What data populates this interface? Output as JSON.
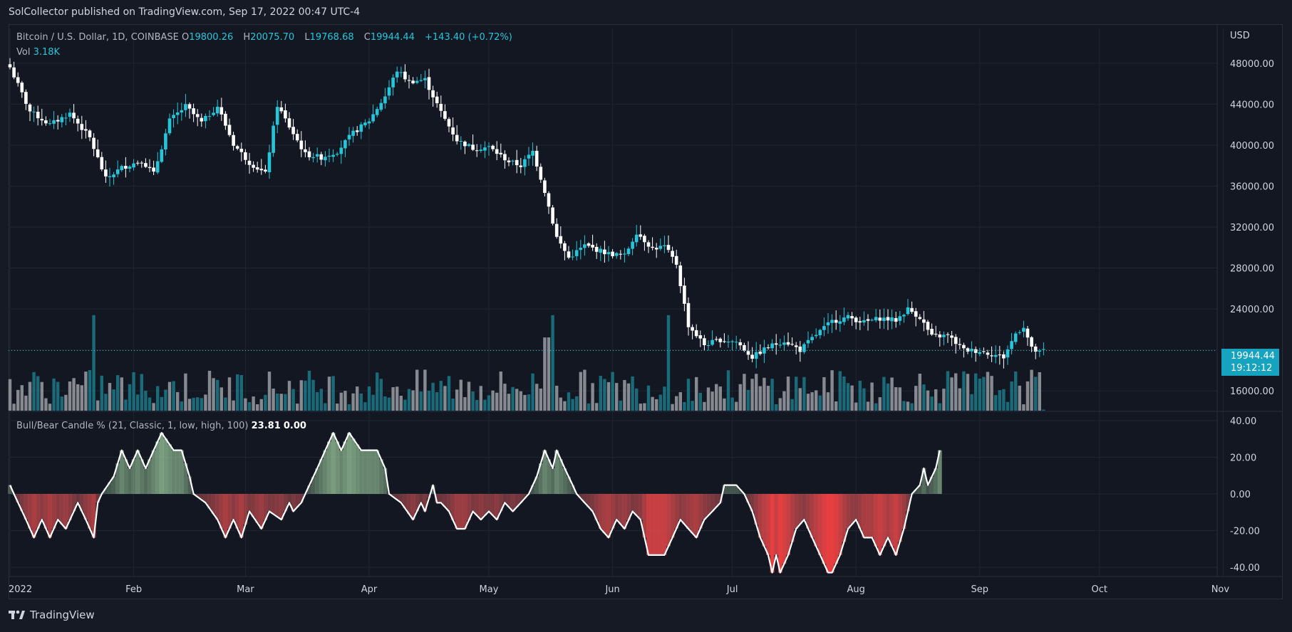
{
  "header": {
    "publisher_line": "SolCollector published on TradingView.com, Sep 17, 2022 00:47 UTC-4"
  },
  "symbol": {
    "name": "Bitcoin / U.S. Dollar, 1D, COINBASE",
    "open_label": "O",
    "open": "19800.26",
    "high_label": "H",
    "high": "20075.70",
    "low_label": "L",
    "low": "19768.68",
    "close_label": "C",
    "close": "19944.44",
    "change": "+143.40 (+0.72%)",
    "vol_label": "Vol",
    "vol": "3.18K",
    "currency": "USD",
    "last_price": "19944.44",
    "countdown": "19:12:12"
  },
  "indicator": {
    "title": "Bull/Bear Candle % (21, Classic, 1, low, high, 100)",
    "value1": "23.81",
    "value2": "0.00"
  },
  "footer": {
    "brand": "TradingView"
  },
  "colors": {
    "up": "#26c6da",
    "down": "#ffffff",
    "bg": "#131722",
    "grid": "#1f2430"
  },
  "chart_data": [
    {
      "type": "candlestick",
      "title": "Bitcoin / U.S. Dollar, 1D, COINBASE",
      "ylabel": "USD",
      "ylim": [
        14000,
        50000
      ],
      "yticks": [
        "48000.00",
        "44000.00",
        "40000.00",
        "36000.00",
        "32000.00",
        "28000.00",
        "24000.00",
        "16000.00"
      ],
      "xticks": [
        "2022",
        "Feb",
        "Mar",
        "Apr",
        "May",
        "Jun",
        "Jul",
        "Aug",
        "Sep",
        "Oct",
        "Nov"
      ],
      "x_start": "2022-01-01",
      "anchors": [
        {
          "day": 0,
          "close": 47600
        },
        {
          "day": 5,
          "close": 43300
        },
        {
          "day": 10,
          "close": 42000
        },
        {
          "day": 15,
          "close": 43100
        },
        {
          "day": 20,
          "close": 40700
        },
        {
          "day": 24,
          "close": 36700
        },
        {
          "day": 28,
          "close": 37800
        },
        {
          "day": 33,
          "close": 38500
        },
        {
          "day": 36,
          "close": 37200
        },
        {
          "day": 40,
          "close": 42400
        },
        {
          "day": 44,
          "close": 43800
        },
        {
          "day": 48,
          "close": 42200
        },
        {
          "day": 52,
          "close": 43800
        },
        {
          "day": 56,
          "close": 40100
        },
        {
          "day": 60,
          "close": 38300
        },
        {
          "day": 64,
          "close": 37200
        },
        {
          "day": 67,
          "close": 43900
        },
        {
          "day": 70,
          "close": 41800
        },
        {
          "day": 74,
          "close": 39100
        },
        {
          "day": 78,
          "close": 38800
        },
        {
          "day": 82,
          "close": 39400
        },
        {
          "day": 86,
          "close": 41200
        },
        {
          "day": 90,
          "close": 42400
        },
        {
          "day": 94,
          "close": 44800
        },
        {
          "day": 97,
          "close": 47300
        },
        {
          "day": 100,
          "close": 46200
        },
        {
          "day": 104,
          "close": 46400
        },
        {
          "day": 108,
          "close": 43200
        },
        {
          "day": 112,
          "close": 40500
        },
        {
          "day": 116,
          "close": 39700
        },
        {
          "day": 120,
          "close": 39800
        },
        {
          "day": 125,
          "close": 38400
        },
        {
          "day": 128,
          "close": 38000
        },
        {
          "day": 131,
          "close": 39400
        },
        {
          "day": 134,
          "close": 35500
        },
        {
          "day": 137,
          "close": 31000
        },
        {
          "day": 140,
          "close": 29000
        },
        {
          "day": 144,
          "close": 30200
        },
        {
          "day": 150,
          "close": 29400
        },
        {
          "day": 154,
          "close": 29200
        },
        {
          "day": 157,
          "close": 31500
        },
        {
          "day": 161,
          "close": 29900
        },
        {
          "day": 164,
          "close": 30100
        },
        {
          "day": 167,
          "close": 28400
        },
        {
          "day": 170,
          "close": 22400
        },
        {
          "day": 174,
          "close": 20500
        },
        {
          "day": 178,
          "close": 21000
        },
        {
          "day": 182,
          "close": 20800
        },
        {
          "day": 186,
          "close": 19300
        },
        {
          "day": 190,
          "close": 20300
        },
        {
          "day": 194,
          "close": 20900
        },
        {
          "day": 198,
          "close": 20000
        },
        {
          "day": 202,
          "close": 21500
        },
        {
          "day": 206,
          "close": 22800
        },
        {
          "day": 210,
          "close": 23200
        },
        {
          "day": 214,
          "close": 22700
        },
        {
          "day": 218,
          "close": 23100
        },
        {
          "day": 222,
          "close": 22900
        },
        {
          "day": 225,
          "close": 24000
        },
        {
          "day": 228,
          "close": 23200
        },
        {
          "day": 231,
          "close": 21300
        },
        {
          "day": 235,
          "close": 21400
        },
        {
          "day": 239,
          "close": 20000
        },
        {
          "day": 243,
          "close": 19900
        },
        {
          "day": 247,
          "close": 19500
        },
        {
          "day": 249,
          "close": 19300
        },
        {
          "day": 252,
          "close": 21600
        },
        {
          "day": 254,
          "close": 22300
        },
        {
          "day": 256,
          "close": 20100
        },
        {
          "day": 258,
          "close": 19700
        },
        {
          "day": 259,
          "close": 19944
        }
      ],
      "volume": {
        "ylim": [
          0,
          350
        ],
        "last": 3.18
      }
    },
    {
      "type": "area",
      "title": "Bull/Bear Candle % (21, Classic, 1, low, high, 100)",
      "ylim": [
        -45,
        45
      ],
      "yticks": [
        "40.00",
        "20.00",
        "0.00",
        "-20.00",
        "-40.00"
      ],
      "anchors": [
        {
          "day": 0,
          "value": 4.8
        },
        {
          "day": 1,
          "value": 0
        },
        {
          "day": 4,
          "value": -14
        },
        {
          "day": 6,
          "value": -23.8
        },
        {
          "day": 8,
          "value": -14
        },
        {
          "day": 10,
          "value": -23.8
        },
        {
          "day": 12,
          "value": -14
        },
        {
          "day": 14,
          "value": -19
        },
        {
          "day": 17,
          "value": -4.8
        },
        {
          "day": 19,
          "value": -14
        },
        {
          "day": 21,
          "value": -23.8
        },
        {
          "day": 22,
          "value": -4.8
        },
        {
          "day": 23,
          "value": 0
        },
        {
          "day": 26,
          "value": 9.5
        },
        {
          "day": 28,
          "value": 23.8
        },
        {
          "day": 30,
          "value": 14
        },
        {
          "day": 32,
          "value": 23.8
        },
        {
          "day": 34,
          "value": 14
        },
        {
          "day": 36,
          "value": 23.8
        },
        {
          "day": 38,
          "value": 33.3
        },
        {
          "day": 41,
          "value": 23.8
        },
        {
          "day": 43,
          "value": 23.8
        },
        {
          "day": 45,
          "value": 9.5
        },
        {
          "day": 46,
          "value": 0
        },
        {
          "day": 49,
          "value": -4.8
        },
        {
          "day": 52,
          "value": -14
        },
        {
          "day": 54,
          "value": -23.8
        },
        {
          "day": 56,
          "value": -14
        },
        {
          "day": 58,
          "value": -23.8
        },
        {
          "day": 60,
          "value": -9.5
        },
        {
          "day": 63,
          "value": -19
        },
        {
          "day": 65,
          "value": -9.5
        },
        {
          "day": 68,
          "value": -14
        },
        {
          "day": 70,
          "value": -4.8
        },
        {
          "day": 71,
          "value": -9.5
        },
        {
          "day": 73,
          "value": -4.8
        },
        {
          "day": 74,
          "value": 0
        },
        {
          "day": 77,
          "value": 14
        },
        {
          "day": 79,
          "value": 23.8
        },
        {
          "day": 81,
          "value": 33.3
        },
        {
          "day": 83,
          "value": 23.8
        },
        {
          "day": 85,
          "value": 33.3
        },
        {
          "day": 88,
          "value": 23.8
        },
        {
          "day": 92,
          "value": 23.8
        },
        {
          "day": 94,
          "value": 14
        },
        {
          "day": 95,
          "value": 0
        },
        {
          "day": 98,
          "value": -4.8
        },
        {
          "day": 101,
          "value": -14
        },
        {
          "day": 103,
          "value": -4.8
        },
        {
          "day": 104,
          "value": -9.5
        },
        {
          "day": 106,
          "value": 4.8
        },
        {
          "day": 107,
          "value": -4.8
        },
        {
          "day": 108,
          "value": -4.8
        },
        {
          "day": 110,
          "value": -9.5
        },
        {
          "day": 112,
          "value": -19
        },
        {
          "day": 114,
          "value": -19
        },
        {
          "day": 116,
          "value": -9.5
        },
        {
          "day": 118,
          "value": -14
        },
        {
          "day": 120,
          "value": -9.5
        },
        {
          "day": 122,
          "value": -14
        },
        {
          "day": 124,
          "value": -4.8
        },
        {
          "day": 126,
          "value": -9.5
        },
        {
          "day": 128,
          "value": -4.8
        },
        {
          "day": 130,
          "value": 0
        },
        {
          "day": 132,
          "value": 9.5
        },
        {
          "day": 134,
          "value": 23.8
        },
        {
          "day": 136,
          "value": 14
        },
        {
          "day": 137,
          "value": 23.8
        },
        {
          "day": 139,
          "value": 14
        },
        {
          "day": 141,
          "value": 4.8
        },
        {
          "day": 142,
          "value": 0
        },
        {
          "day": 144,
          "value": -4.8
        },
        {
          "day": 146,
          "value": -9.5
        },
        {
          "day": 148,
          "value": -19
        },
        {
          "day": 150,
          "value": -23.8
        },
        {
          "day": 152,
          "value": -14
        },
        {
          "day": 154,
          "value": -19
        },
        {
          "day": 156,
          "value": -9.5
        },
        {
          "day": 158,
          "value": -14
        },
        {
          "day": 160,
          "value": -33.3
        },
        {
          "day": 164,
          "value": -33.3
        },
        {
          "day": 166,
          "value": -23.8
        },
        {
          "day": 168,
          "value": -14
        },
        {
          "day": 170,
          "value": -19
        },
        {
          "day": 172,
          "value": -23.8
        },
        {
          "day": 174,
          "value": -14
        },
        {
          "day": 176,
          "value": -9.5
        },
        {
          "day": 178,
          "value": -4.8
        },
        {
          "day": 179,
          "value": 4.8
        },
        {
          "day": 182,
          "value": 4.8
        },
        {
          "day": 184,
          "value": 0
        },
        {
          "day": 186,
          "value": -9.5
        },
        {
          "day": 188,
          "value": -23.8
        },
        {
          "day": 190,
          "value": -33.3
        },
        {
          "day": 191,
          "value": -42.9
        },
        {
          "day": 192,
          "value": -33.3
        },
        {
          "day": 193,
          "value": -42.9
        },
        {
          "day": 195,
          "value": -33.3
        },
        {
          "day": 197,
          "value": -19
        },
        {
          "day": 199,
          "value": -14
        },
        {
          "day": 201,
          "value": -23.8
        },
        {
          "day": 203,
          "value": -33.3
        },
        {
          "day": 205,
          "value": -42.9
        },
        {
          "day": 206,
          "value": -42.9
        },
        {
          "day": 208,
          "value": -33.3
        },
        {
          "day": 210,
          "value": -19
        },
        {
          "day": 212,
          "value": -14
        },
        {
          "day": 214,
          "value": -23.8
        },
        {
          "day": 216,
          "value": -23.8
        },
        {
          "day": 218,
          "value": -33.3
        },
        {
          "day": 220,
          "value": -23.8
        },
        {
          "day": 222,
          "value": -33.3
        },
        {
          "day": 224,
          "value": -19
        },
        {
          "day": 226,
          "value": 0
        },
        {
          "day": 228,
          "value": 4.8
        },
        {
          "day": 229,
          "value": 14
        },
        {
          "day": 230,
          "value": 4.8
        },
        {
          "day": 232,
          "value": 14
        },
        {
          "day": 233,
          "value": 23.8
        }
      ]
    }
  ]
}
